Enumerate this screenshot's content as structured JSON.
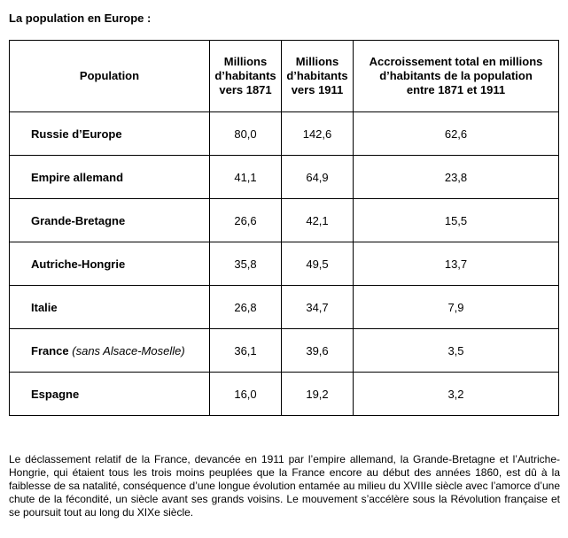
{
  "title": "La population en Europe :",
  "table": {
    "headers": [
      "Population",
      "Millions\nd’habitants\nvers 1871",
      "Millions\nd’habitants\nvers 1911",
      "Accroissement total en millions\nd’habitants de la population\nentre 1871 et 1911"
    ],
    "rows": [
      {
        "country": "Russie d’Europe",
        "note": "",
        "v1871": "80,0",
        "v1911": "142,6",
        "growth": "62,6"
      },
      {
        "country": "Empire allemand",
        "note": "",
        "v1871": "41,1",
        "v1911": "64,9",
        "growth": "23,8"
      },
      {
        "country": "Grande-Bretagne",
        "note": "",
        "v1871": "26,6",
        "v1911": "42,1",
        "growth": "15,5"
      },
      {
        "country": "Autriche-Hongrie",
        "note": "",
        "v1871": "35,8",
        "v1911": "49,5",
        "growth": "13,7"
      },
      {
        "country": "Italie",
        "note": "",
        "v1871": "26,8",
        "v1911": "34,7",
        "growth": "7,9"
      },
      {
        "country": "France",
        "note": "(sans Alsace-Moselle)",
        "v1871": "36,1",
        "v1911": "39,6",
        "growth": "3,5"
      },
      {
        "country": "Espagne",
        "note": "",
        "v1871": "16,0",
        "v1911": "19,2",
        "growth": "3,2"
      }
    ]
  },
  "paragraph": "Le déclassement relatif de la France, devancée en 1911 par l’empire allemand, la Grande-Bretagne et l’Autriche-Hongrie, qui étaient tous les trois moins peuplées que la France encore au début des années 1860, est dû à la faiblesse de sa natalité, conséquence d’une longue évolution entamée au milieu du XVIIIe siècle avec l’amorce d’une chute de la fécondité, un siècle avant ses grands voisins. Le mouvement s’accélère sous la Révolution française et se poursuit tout au long du XIXe siècle."
}
